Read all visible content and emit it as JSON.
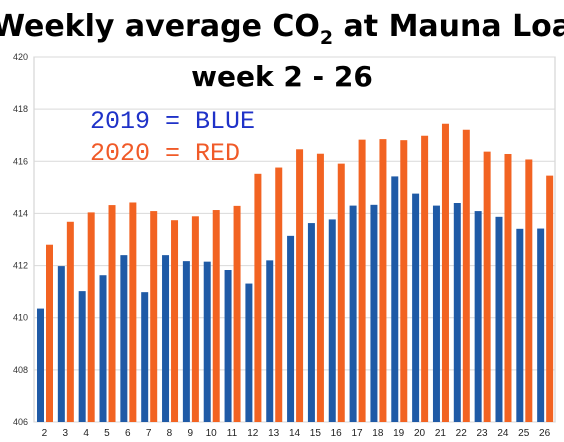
{
  "chart_data": {
    "type": "bar",
    "title_main": "Weekly average CO",
    "title_sub": "2",
    "title_rest": " at Mauna Loa",
    "subtitle": "week 2 - 26",
    "xlabel": "",
    "ylabel": "",
    "ylim": [
      406,
      420
    ],
    "yticks": [
      "406",
      "408",
      "410",
      "412",
      "414",
      "416",
      "418",
      "420"
    ],
    "grid": true,
    "categories": [
      "2",
      "3",
      "4",
      "5",
      "6",
      "7",
      "8",
      "9",
      "10",
      "11",
      "12",
      "13",
      "14",
      "15",
      "16",
      "17",
      "18",
      "19",
      "20",
      "21",
      "22",
      "23",
      "24",
      "25",
      "26"
    ],
    "series": [
      {
        "color": "#1f5aa6",
        "values": [
          410.35,
          411.98,
          411.02,
          411.63,
          412.4,
          410.98,
          412.4,
          412.17,
          412.15,
          411.83,
          411.31,
          412.2,
          413.14,
          413.63,
          413.77,
          414.3,
          414.33,
          415.42,
          414.76,
          414.3,
          414.4,
          414.09,
          413.87,
          413.41,
          413.42
        ]
      },
      {
        "color": "#f26322",
        "values": [
          412.8,
          413.68,
          414.04,
          414.32,
          414.42,
          414.09,
          413.74,
          413.89,
          414.13,
          414.29,
          415.52,
          415.76,
          416.46,
          416.29,
          415.91,
          416.83,
          416.85,
          416.81,
          416.98,
          417.44,
          417.21,
          416.37,
          416.28,
          416.07,
          415.45
        ]
      }
    ],
    "legend": [
      {
        "text": "2019 = BLUE",
        "color": "#1f32c8"
      },
      {
        "text": "2020 = RED",
        "color": "#f05a28"
      }
    ]
  }
}
